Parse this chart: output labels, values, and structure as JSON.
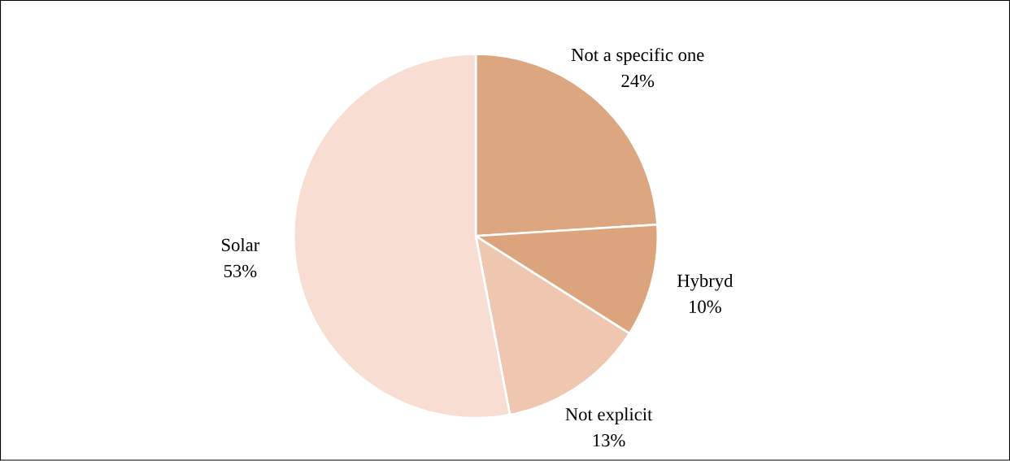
{
  "chart_data": {
    "type": "pie",
    "categories": [
      "Not a specific one",
      "Hybryd",
      "Not explicit",
      "Solar"
    ],
    "values": [
      24,
      10,
      13,
      53
    ],
    "value_labels": [
      "24%",
      "10%",
      "13%",
      "53%"
    ],
    "colors": [
      "#dba680",
      "#dba47c",
      "#efc6b0",
      "#f7ddd2"
    ]
  }
}
